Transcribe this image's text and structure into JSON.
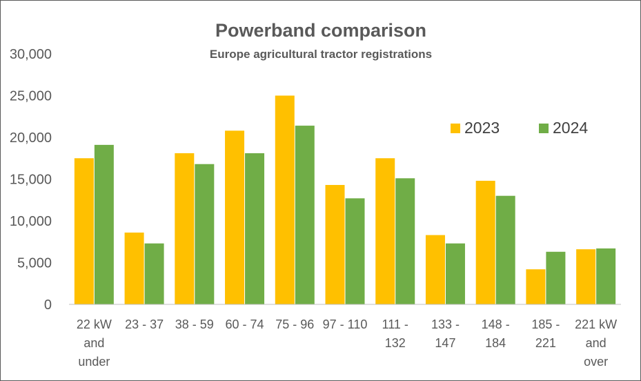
{
  "chart_data": {
    "type": "bar",
    "title": "Powerband comparison",
    "subtitle": "Europe agricultural tractor registrations",
    "xlabel": "",
    "ylabel": "",
    "categories": [
      [
        "22 kW",
        "and",
        "under"
      ],
      [
        "23 - 37"
      ],
      [
        "38 - 59"
      ],
      [
        "60 - 74"
      ],
      [
        "75 - 96"
      ],
      [
        "97 - 110"
      ],
      [
        "111 -",
        "132"
      ],
      [
        "133 -",
        "147"
      ],
      [
        "148 -",
        "184"
      ],
      [
        "185 -",
        "221"
      ],
      [
        "221 kW",
        "and",
        "over"
      ]
    ],
    "series": [
      {
        "name": "2023",
        "color": "#FFC000",
        "values": [
          17500,
          8600,
          18100,
          20800,
          25000,
          14300,
          17500,
          8300,
          14800,
          4200,
          6600
        ]
      },
      {
        "name": "2024",
        "color": "#70AD47",
        "values": [
          19100,
          7300,
          16800,
          18100,
          21400,
          12700,
          15100,
          7300,
          13000,
          6300,
          6700
        ]
      }
    ],
    "ylim": [
      0,
      30000
    ],
    "yticks": [
      0,
      5000,
      10000,
      15000,
      20000,
      25000,
      30000
    ],
    "ytick_labels": [
      "0",
      "5,000",
      "10,000",
      "15,000",
      "20,000",
      "25,000",
      "30,000"
    ],
    "grid": false,
    "legend": "right"
  }
}
